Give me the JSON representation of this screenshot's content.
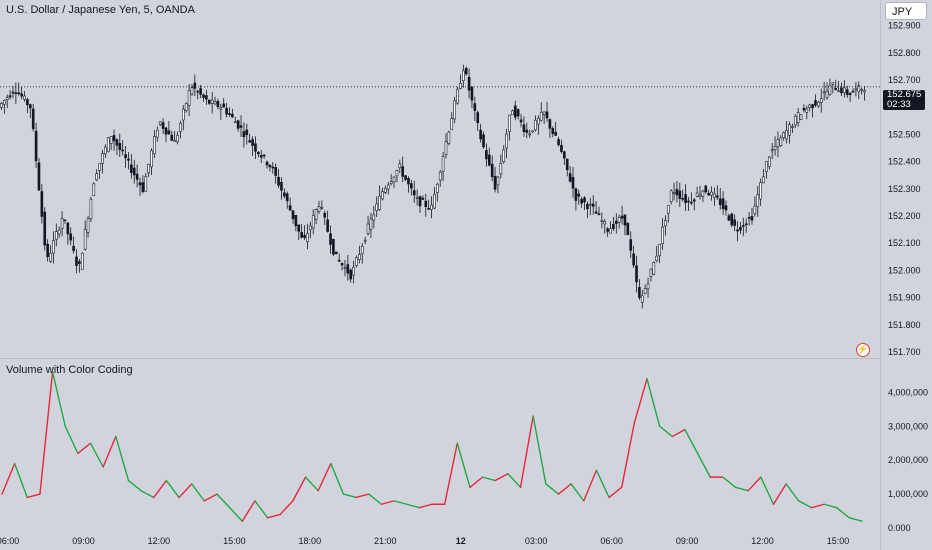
{
  "header": {
    "symbol_title": "U.S. Dollar / Japanese Yen, 5, OANDA",
    "currency_button": "JPY"
  },
  "last_price": {
    "price": "152.675",
    "countdown": "02:33"
  },
  "indicator": {
    "title": "Volume with Color Coding"
  },
  "colors": {
    "background": "#d1d4dc",
    "candle": "#131722",
    "volume_up": "#22a844",
    "volume_down": "#e8283a",
    "price_line": "#131722"
  },
  "price_axis": {
    "ticks": [
      "152.900",
      "152.800",
      "152.700",
      "152.600",
      "152.500",
      "152.400",
      "152.300",
      "152.200",
      "152.100",
      "152.000",
      "151.900",
      "151.800",
      "151.700"
    ]
  },
  "volume_axis": {
    "ticks": [
      "4,000,000",
      "3,000,000",
      "2,000,000",
      "1,000,000",
      "0.000"
    ]
  },
  "time_axis": {
    "ticks": [
      {
        "label": "06:00",
        "bold": false
      },
      {
        "label": "09:00",
        "bold": false
      },
      {
        "label": "12:00",
        "bold": false
      },
      {
        "label": "15:00",
        "bold": false
      },
      {
        "label": "18:00",
        "bold": false
      },
      {
        "label": "21:00",
        "bold": false
      },
      {
        "label": "12",
        "bold": true
      },
      {
        "label": "03:00",
        "bold": false
      },
      {
        "label": "06:00",
        "bold": false
      },
      {
        "label": "09:00",
        "bold": false
      },
      {
        "label": "12:00",
        "bold": false
      },
      {
        "label": "15:00",
        "bold": false
      }
    ]
  },
  "chart_data": [
    {
      "type": "line",
      "title": "U.S. Dollar / Japanese Yen, 5, OANDA",
      "xlabel": "",
      "ylabel": "",
      "ylim": [
        151.7,
        152.95
      ],
      "grid": false,
      "candlestick": true,
      "last_price": 152.675,
      "series": [
        {
          "x": [
            "06:00",
            "06:45",
            "07:30",
            "08:00",
            "08:30",
            "09:00",
            "09:30",
            "10:00",
            "10:45",
            "11:30",
            "12:00",
            "12:30",
            "13:00",
            "13:30",
            "14:00",
            "14:45",
            "15:30",
            "16:00",
            "17:00",
            "18:00",
            "18:30",
            "19:00",
            "19:30",
            "20:00",
            "20:30",
            "21:00",
            "21:45",
            "22:30",
            "23:00",
            "00:00",
            "00:30",
            "01:00",
            "01:30",
            "02:00",
            "02:30",
            "03:00",
            "03:30",
            "04:00",
            "05:00",
            "06:00",
            "06:30",
            "07:00",
            "07:30",
            "08:00",
            "08:30",
            "09:00",
            "10:00",
            "11:00",
            "11:30",
            "12:00",
            "13:00",
            "14:00",
            "14:30",
            "15:00",
            "15:30"
          ],
          "values": [
            152.6,
            152.67,
            152.6,
            152.03,
            152.2,
            152.0,
            152.35,
            152.5,
            152.4,
            152.3,
            152.55,
            152.47,
            152.68,
            152.62,
            152.6,
            152.53,
            152.45,
            152.38,
            152.25,
            152.1,
            152.25,
            152.05,
            151.98,
            152.15,
            152.3,
            152.38,
            152.26,
            152.23,
            152.5,
            152.75,
            152.5,
            152.3,
            152.6,
            152.5,
            152.58,
            152.45,
            152.27,
            152.23,
            152.15,
            152.2,
            151.88,
            152.05,
            152.3,
            152.25,
            152.3,
            152.25,
            152.15,
            152.2,
            152.42,
            152.5,
            152.58,
            152.62,
            152.68,
            152.65,
            152.675
          ]
        }
      ]
    },
    {
      "type": "line",
      "title": "Volume with Color Coding",
      "xlabel": "",
      "ylabel": "",
      "ylim": [
        0,
        4600000
      ],
      "grid": false,
      "series": [
        {
          "x": [
            "06:00",
            "06:30",
            "07:00",
            "07:30",
            "07:45",
            "08:00",
            "08:30",
            "09:00",
            "09:30",
            "10:00",
            "10:30",
            "11:00",
            "11:30",
            "12:00",
            "12:30",
            "13:00",
            "13:30",
            "14:00",
            "14:30",
            "15:00",
            "15:30",
            "16:00",
            "16:30",
            "17:00",
            "17:30",
            "18:00",
            "18:30",
            "19:00",
            "19:30",
            "20:00",
            "20:30",
            "21:00",
            "21:30",
            "22:00",
            "22:30",
            "23:00",
            "23:30",
            "00:00",
            "00:30",
            "01:00",
            "01:30",
            "02:00",
            "02:30",
            "03:00",
            "03:30",
            "04:00",
            "04:30",
            "05:00",
            "05:30",
            "06:00",
            "06:30",
            "07:00",
            "07:30",
            "08:00",
            "08:30",
            "09:00",
            "09:30",
            "10:00",
            "10:30",
            "11:00",
            "11:30",
            "12:00",
            "12:30",
            "13:00",
            "13:30",
            "14:00",
            "14:30",
            "15:00",
            "15:30"
          ],
          "values": [
            1000000,
            1900000,
            900000,
            1000000,
            4600000,
            3000000,
            2200000,
            2500000,
            1800000,
            2700000,
            1400000,
            1100000,
            900000,
            1400000,
            900000,
            1300000,
            800000,
            1000000,
            600000,
            200000,
            800000,
            300000,
            400000,
            800000,
            1500000,
            1100000,
            1900000,
            1000000,
            900000,
            1000000,
            700000,
            800000,
            700000,
            600000,
            700000,
            700000,
            2500000,
            1200000,
            1500000,
            1400000,
            1600000,
            1200000,
            3300000,
            1300000,
            1000000,
            1300000,
            800000,
            1700000,
            900000,
            1200000,
            3100000,
            4400000,
            3000000,
            2700000,
            2900000,
            2200000,
            1500000,
            1500000,
            1200000,
            1100000,
            1500000,
            700000,
            1300000,
            800000,
            600000,
            700000,
            600000,
            300000,
            200000
          ]
        }
      ]
    }
  ]
}
